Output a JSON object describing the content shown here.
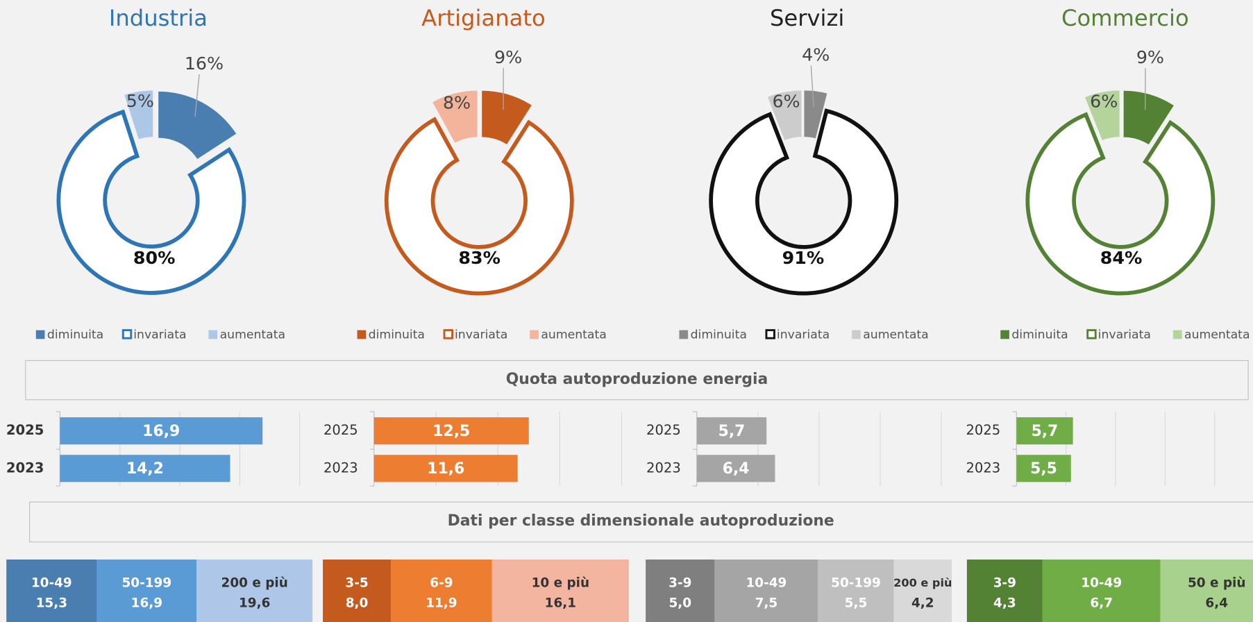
{
  "chart_data": [
    {
      "type": "donut",
      "title": "Industria",
      "title_color": "#2e75b6",
      "ring_color": "#2e75b6",
      "categories": [
        "diminuita",
        "invariata",
        "aumentata"
      ],
      "values": [
        16,
        80,
        5
      ],
      "value_labels": [
        "16%",
        "80%",
        "5%"
      ],
      "colors": [
        "#4a7eb0",
        "#ffffff",
        "#adc7e6"
      ]
    },
    {
      "type": "donut",
      "title": "Artigianato",
      "title_color": "#c55a1e",
      "ring_color": "#c55a1e",
      "categories": [
        "diminuita",
        "invariata",
        "aumentata"
      ],
      "values": [
        9,
        83,
        8
      ],
      "value_labels": [
        "9%",
        "83%",
        "8%"
      ],
      "colors": [
        "#c55a1e",
        "#ffffff",
        "#f4b49c"
      ]
    },
    {
      "type": "donut",
      "title": "Servizi",
      "title_color": "#222222",
      "ring_color": "#111111",
      "categories": [
        "diminuita",
        "invariata",
        "aumentata"
      ],
      "values": [
        4,
        91,
        6
      ],
      "value_labels": [
        "4%",
        "91%",
        "6%"
      ],
      "colors": [
        "#8a8a8a",
        "#ffffff",
        "#cccccc"
      ]
    },
    {
      "type": "donut",
      "title": "Commercio",
      "title_color": "#548235",
      "ring_color": "#548235",
      "categories": [
        "diminuita",
        "invariata",
        "aumentata"
      ],
      "values": [
        9,
        84,
        6
      ],
      "value_labels": [
        "9%",
        "84%",
        "6%"
      ],
      "colors": [
        "#548235",
        "#ffffff",
        "#b4d49c"
      ]
    },
    {
      "type": "hbar",
      "categories": [
        "2025",
        "2023"
      ],
      "values": [
        16.9,
        14.2
      ],
      "value_labels": [
        "16,9",
        "14,2"
      ],
      "color": "#5b9bd5",
      "xlim": [
        0,
        20
      ],
      "xticks": [
        0,
        5,
        10,
        15,
        20
      ],
      "grid": true
    },
    {
      "type": "hbar",
      "categories": [
        "2025",
        "2023"
      ],
      "values": [
        12.5,
        11.6
      ],
      "value_labels": [
        "12,5",
        "11,6"
      ],
      "color": "#ed7d31",
      "xlim": [
        0,
        20
      ],
      "xticks": [
        0,
        5,
        10,
        15,
        20
      ],
      "grid": true
    },
    {
      "type": "hbar",
      "categories": [
        "2025",
        "2023"
      ],
      "values": [
        5.7,
        6.4
      ],
      "value_labels": [
        "5,7",
        "6,4"
      ],
      "color": "#a5a5a5",
      "xlim": [
        0,
        20
      ],
      "xticks": [
        0,
        5,
        10,
        15,
        20
      ],
      "grid": true
    },
    {
      "type": "hbar",
      "categories": [
        "2025",
        "2023"
      ],
      "values": [
        5.7,
        5.5
      ],
      "value_labels": [
        "5,7",
        "5,5"
      ],
      "color": "#70ad47",
      "xlim": [
        0,
        20
      ],
      "xticks": [
        0,
        5,
        10,
        15,
        20
      ],
      "grid": true
    },
    {
      "type": "stacked",
      "categories": [
        "10-49",
        "50-199",
        "200 e più"
      ],
      "values": [
        15.3,
        16.9,
        19.6
      ],
      "value_labels": [
        "15,3",
        "16,9",
        "19,6"
      ],
      "colors": [
        "#4a7db0",
        "#5b9bd5",
        "#aec7e8"
      ]
    },
    {
      "type": "stacked",
      "categories": [
        "3-5",
        "6-9",
        "10 e più"
      ],
      "values": [
        8.0,
        11.9,
        16.1
      ],
      "value_labels": [
        "8,0",
        "11,9",
        "16,1"
      ],
      "colors": [
        "#c55a1e",
        "#ed7d31",
        "#f4b5a0"
      ]
    },
    {
      "type": "stacked",
      "categories": [
        "3-9",
        "10-49",
        "50-199",
        "200 e più"
      ],
      "values": [
        5.0,
        7.5,
        5.5,
        4.2
      ],
      "value_labels": [
        "5,0",
        "7,5",
        "5,5",
        "4,2"
      ],
      "colors": [
        "#7f7f7f",
        "#a5a5a5",
        "#bfbfbf",
        "#d9d9d9"
      ]
    },
    {
      "type": "stacked",
      "categories": [
        "3-9",
        "10-49",
        "50 e più"
      ],
      "values": [
        4.3,
        6.7,
        6.4
      ],
      "value_labels": [
        "4,3",
        "6,7",
        "6,4"
      ],
      "colors": [
        "#548235",
        "#70ad47",
        "#a9d18e"
      ]
    }
  ],
  "sections": [
    "Quota autoproduzione energia",
    "Dati per classe dimensionale autoproduzione"
  ]
}
